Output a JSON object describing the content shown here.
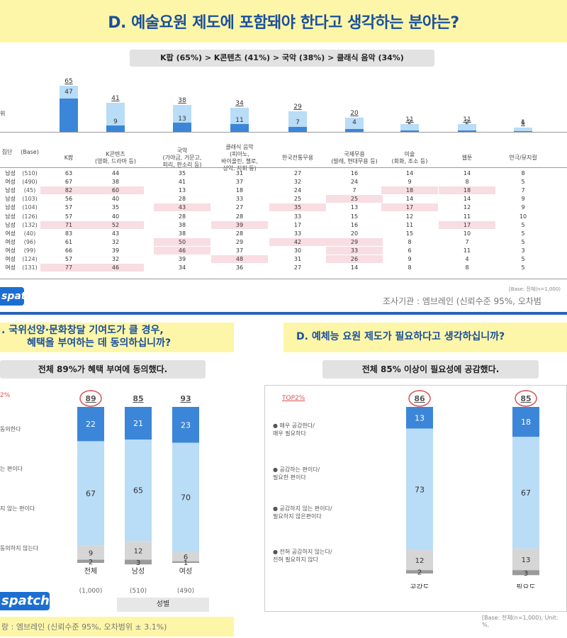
{
  "title": "D. 예술요원 제도에 포함돼야 한다고 생각하는 분야는?",
  "summary": "K팝 (65%) > K콘텐츠 (41%) > 국악 (38%) > 클래식 음악 (34%)",
  "left_stub": "위",
  "top_chart": {
    "categories": [
      "K팝",
      "K콘텐츠\n(영화, 드라마 등)",
      "국악\n(가야금, 거문고,\n피리, 판소리 등)",
      "클래식 음악\n(피아노,\n바이올린, 첼로,\n성악, 지휘 등)",
      "한국전통무용",
      "국제무용\n(발레, 현대무용 등)",
      "미술\n(회화, 조소 등)",
      "웹툰",
      "연극/뮤지컬"
    ],
    "totals": [
      "65",
      "41",
      "38",
      "34",
      "29",
      "20",
      "11",
      "11",
      "6"
    ],
    "first": [
      "47",
      "9",
      "13",
      "11",
      "7",
      "4",
      "2",
      "2",
      "1"
    ]
  },
  "chart_data": [
    {
      "type": "bar",
      "categories": [
        "K팝",
        "K콘텐츠",
        "국악",
        "클래식 음악",
        "한국전통무용",
        "국제무용",
        "미술",
        "웹툰",
        "연극/뮤지컬"
      ],
      "series": [
        {
          "name": "",
          "values": [
            47,
            9,
            13,
            11,
            7,
            4,
            2,
            2,
            1
          ]
        },
        {
          "name": "",
          "values": [
            65,
            41,
            38,
            34,
            29,
            20,
            11,
            11,
            6
          ]
        }
      ]
    },
    {
      "type": "bar",
      "categories": [
        "전체",
        "남성",
        "여성"
      ],
      "series": [
        {
          "name": "매우 동의한다",
          "values": [
            22,
            21,
            23
          ]
        },
        {
          "name": "동의하는 편이다",
          "values": [
            67,
            65,
            70
          ]
        },
        {
          "name": "동의하지 않는 편이다",
          "values": [
            9,
            12,
            6
          ]
        },
        {
          "name": "전혀 동의하지 않는다",
          "values": [
            2,
            3,
            1
          ]
        }
      ],
      "top2": [
        89,
        85,
        93
      ]
    },
    {
      "type": "bar",
      "categories": [
        "공감도",
        "필요도"
      ],
      "series": [
        {
          "name": "매우 공감한다/ 매우 필요하다",
          "values": [
            13,
            18
          ]
        },
        {
          "name": "공감하는 편이다/ 필요한 편이다",
          "values": [
            73,
            67
          ]
        },
        {
          "name": "공감하지 않는 편이다/ 필요하지 않은편이다",
          "values": [
            12,
            13
          ]
        },
        {
          "name": "전혀 공감하지 않는다/ 전혀 필요하지 않다",
          "values": [
            2,
            3
          ]
        }
      ],
      "top2": [
        86,
        85
      ]
    }
  ],
  "table": {
    "header_group": "집단",
    "header_base": "(Base)",
    "rows": [
      {
        "label": "남성",
        "base": "(510)",
        "vals": [
          "63",
          "44",
          "35",
          "31",
          "27",
          "16",
          "14",
          "14",
          "8"
        ]
      },
      {
        "label": "여성",
        "base": "(490)",
        "vals": [
          "67",
          "38",
          "41",
          "37",
          "32",
          "24",
          "9",
          "8",
          "5"
        ]
      },
      {
        "label": "남성",
        "base": "(45)",
        "vals": [
          "82",
          "60",
          "13",
          "18",
          "24",
          "7",
          "18",
          "18",
          "7"
        ]
      },
      {
        "label": "남성",
        "base": "(103)",
        "vals": [
          "56",
          "40",
          "28",
          "33",
          "25",
          "25",
          "14",
          "14",
          "9"
        ]
      },
      {
        "label": "남성",
        "base": "(104)",
        "vals": [
          "57",
          "35",
          "43",
          "27",
          "35",
          "13",
          "17",
          "12",
          "9"
        ]
      },
      {
        "label": "남성",
        "base": "(126)",
        "vals": [
          "57",
          "40",
          "28",
          "28",
          "33",
          "15",
          "12",
          "11",
          "10"
        ]
      },
      {
        "label": "남성",
        "base": "(132)",
        "vals": [
          "71",
          "52",
          "38",
          "39",
          "17",
          "16",
          "11",
          "17",
          "5"
        ]
      },
      {
        "label": "여성",
        "base": "(40)",
        "vals": [
          "83",
          "43",
          "38",
          "28",
          "33",
          "20",
          "15",
          "10",
          "5"
        ]
      },
      {
        "label": "여성",
        "base": "(96)",
        "vals": [
          "61",
          "32",
          "50",
          "29",
          "42",
          "29",
          "8",
          "7",
          "5"
        ]
      },
      {
        "label": "여성",
        "base": "(99)",
        "vals": [
          "66",
          "39",
          "46",
          "37",
          "30",
          "33",
          "6",
          "11",
          "3"
        ]
      },
      {
        "label": "여성",
        "base": "(124)",
        "vals": [
          "57",
          "32",
          "39",
          "48",
          "31",
          "26",
          "9",
          "4",
          "5"
        ]
      },
      {
        "label": "여성",
        "base": "(131)",
        "vals": [
          "77",
          "46",
          "34",
          "36",
          "27",
          "14",
          "8",
          "8",
          "5"
        ]
      }
    ],
    "base_note": "[Base: 전체(n=1,000)",
    "source": "조사기관 : 엠브레인 (신뢰수준 95%, 오차범"
  },
  "logo_text": "spatch",
  "logo_text2": "spatch",
  "logo_tag": "",
  "q2": {
    "line1": ". 국위선양·문화창달 기여도가 클 경우,",
    "line2": "혜택을 부여하는 데 동의하십니까?",
    "summary": "전체 89%가 혜택 부여에 동의했다.",
    "top_label": "2%",
    "legend": [
      "동의한다",
      "는 편이다",
      "지 않는 편이다",
      "동의하지 않는다"
    ],
    "cats": [
      "전체",
      "남성",
      "여성"
    ],
    "bases": [
      "(1,000)",
      "(510)",
      "(490)"
    ],
    "group_label": "성별",
    "source": "랑 : 엠브레인 (신뢰수준 95%, 오차범위 ± 3.1%)"
  },
  "q3": {
    "line1": "D. 예체능 요원 제도가 필요하다고 생각하십니까?",
    "summary": "전체 85% 이상이 필요성에 공감했다.",
    "top_label": "TOP2%",
    "legend": [
      "● 매우 공감한다/\n매우 필요하다",
      "● 공감하는 편이다/\n필요한 편이다",
      "● 공감하지 않는 편이다/\n필요하지 않은편이다",
      "● 전혀 공감하지 않는다/\n전혀 필요하지 않다"
    ],
    "cats": [
      "공감도",
      "필요도"
    ],
    "base_note": "[Base: 전체(n=1,000), Unit: %,"
  },
  "colors": {
    "dark": "#3b86d8",
    "light": "#b9dcf7",
    "gray1": "#d6d6d6",
    "gray2": "#9a9a9a",
    "title": "#1b4f9c",
    "band": "#fdf6a8"
  }
}
